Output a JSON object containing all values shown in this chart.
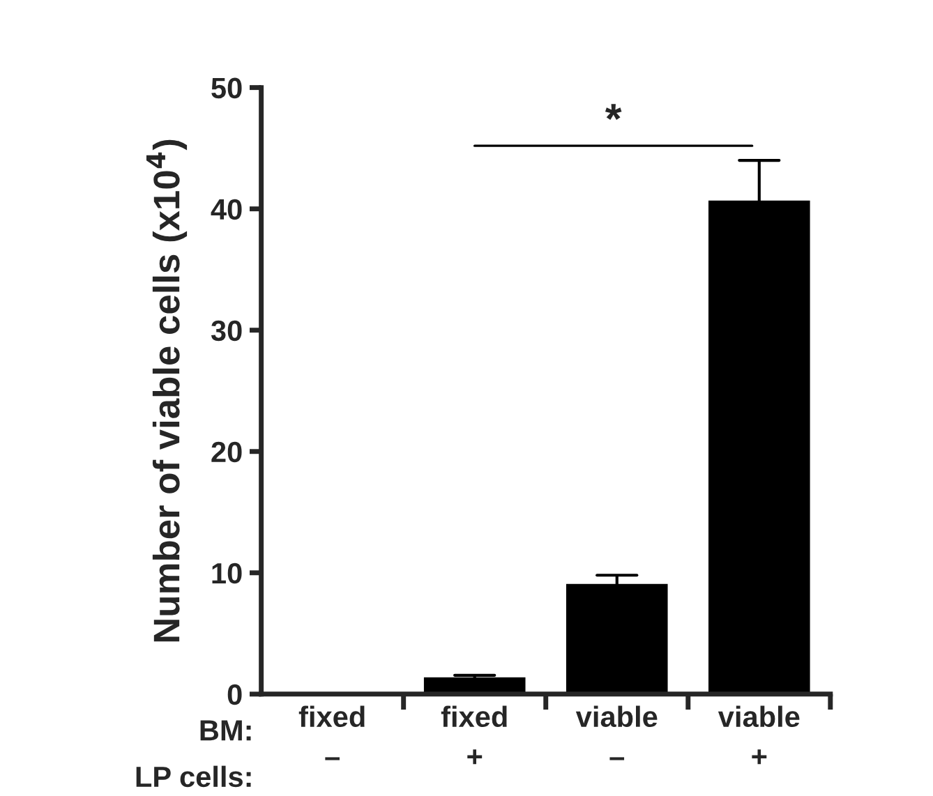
{
  "chart_data": {
    "type": "bar",
    "ylabel": "Number of viable cells (x10$^{4}$)",
    "categories": [
      "fixed\n–",
      "fixed\n+",
      "viable\n–",
      "viable\n+"
    ],
    "values": [
      0,
      1.3,
      9.0,
      40.6
    ],
    "errors": [
      null,
      0.25,
      0.8,
      3.4
    ],
    "color": "#000000",
    "ylim": [
      0,
      50
    ],
    "yticks": [
      0,
      10,
      20,
      30,
      40,
      50
    ],
    "grid": false,
    "annotations": [
      "*",
      "BM:",
      "LP cells:"
    ]
  }
}
